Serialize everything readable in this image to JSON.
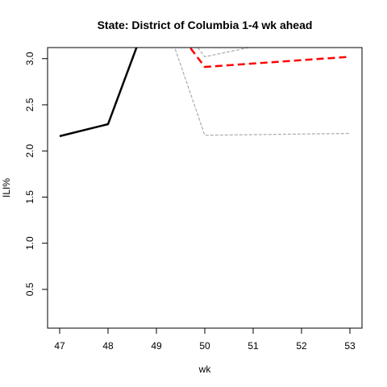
{
  "chart_data": {
    "type": "line",
    "title": "State: District of Columbia 1-4 wk ahead",
    "xlabel": "wk",
    "ylabel": "ILI%",
    "xlim": [
      46.75,
      53.25
    ],
    "ylim": [
      0.08,
      3.12
    ],
    "xticks": [
      47,
      48,
      49,
      50,
      51,
      52,
      53
    ],
    "yticks": [
      0.5,
      1.0,
      1.5,
      2.0,
      2.5,
      3.0
    ],
    "ytick_labels": [
      "0.5",
      "1.0",
      "1.5",
      "2.0",
      "2.5",
      "3.0"
    ],
    "grid": false,
    "legend": "none",
    "series": [
      {
        "style": "solid",
        "color": "#000000",
        "x": [
          47,
          48,
          49
        ],
        "y": [
          2.16,
          2.29,
          3.7
        ]
      },
      {
        "style": "dashed",
        "color": "#ff0000",
        "x": [
          49,
          50,
          53
        ],
        "y": [
          3.6,
          2.91,
          3.02
        ]
      },
      {
        "style": "dotted",
        "color": "#aaaaaa",
        "x": [
          49,
          50,
          51
        ],
        "y": [
          3.7,
          3.02,
          3.13
        ]
      },
      {
        "style": "dotted",
        "color": "#aaaaaa",
        "x": [
          49,
          50,
          53
        ],
        "y": [
          3.7,
          2.17,
          2.19
        ]
      },
      {
        "style": "dotted",
        "color": "#aaaaaa",
        "x": [
          49,
          50,
          51
        ],
        "y": [
          3.7,
          3.2,
          3.3
        ]
      }
    ]
  }
}
